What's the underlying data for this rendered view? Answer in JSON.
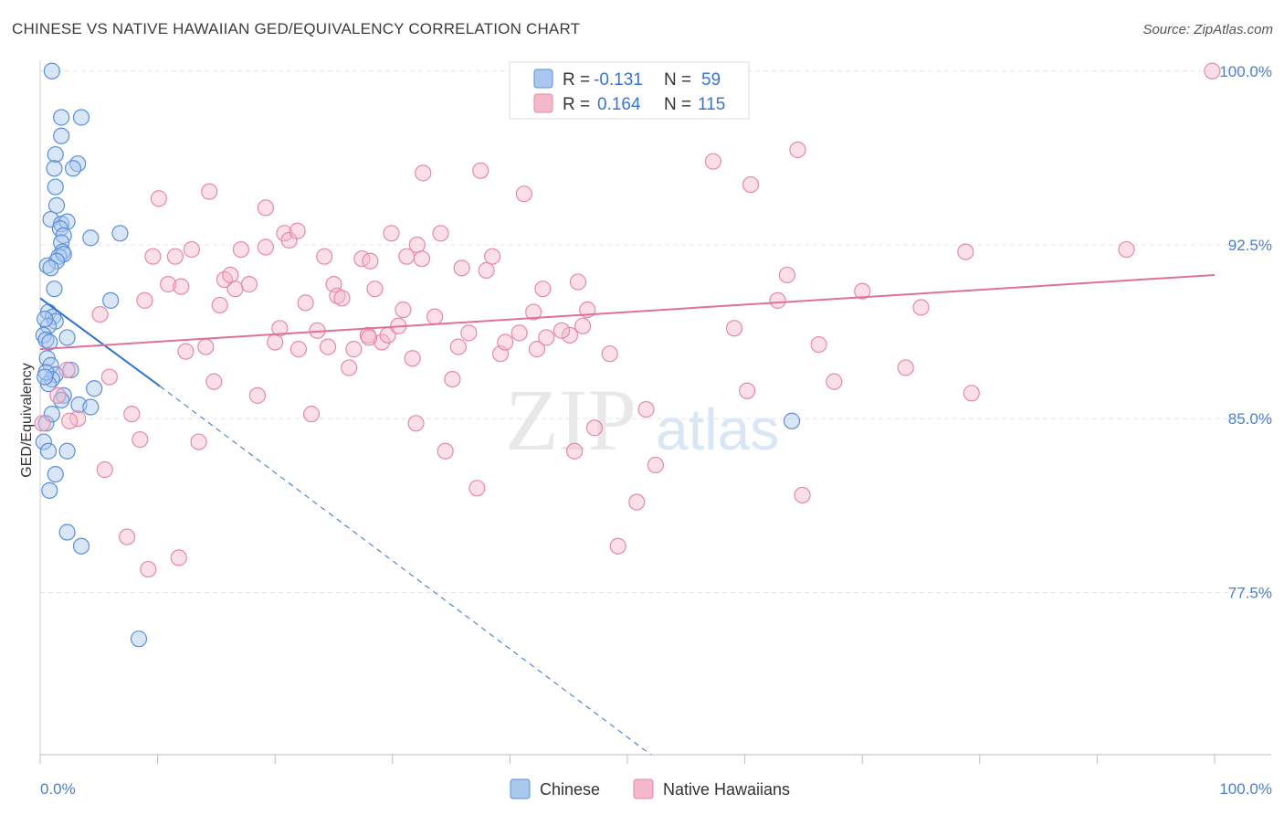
{
  "title": "CHINESE VS NATIVE HAWAIIAN GED/EQUIVALENCY CORRELATION CHART",
  "source": "Source: ZipAtlas.com",
  "watermark": {
    "zip": "ZIP",
    "atlas": "atlas"
  },
  "colors": {
    "chinese_fill": "#aac8ef",
    "chinese_stroke": "#5a8fd8",
    "chinese_line": "#2f6fd1",
    "hawaiian_fill": "#f5b8cb",
    "hawaiian_stroke": "#e589a8",
    "hawaiian_line": "#e0709a",
    "axis_tick": "#4a7fd0",
    "grid": "#e4e4e4"
  },
  "legend": {
    "rows": [
      {
        "r_label": "R =",
        "r_value": "-0.131",
        "n_label": "N =",
        "n_value": "59"
      },
      {
        "r_label": "R =",
        "r_value": "0.164",
        "n_label": "N =",
        "n_value": "115"
      }
    ]
  },
  "bottom_legend": [
    "Chinese",
    "Native Hawaiians"
  ],
  "chart_data": {
    "type": "scatter",
    "title": "CHINESE VS NATIVE HAWAIIAN GED/EQUIVALENCY CORRELATION CHART",
    "xlabel": "",
    "ylabel": "GED/Equivalency",
    "xlim": [
      0,
      100
    ],
    "ylim": [
      70.5,
      100.7
    ],
    "x_tick_labels": [
      "0.0%",
      "100.0%"
    ],
    "y_ticks": [
      77.5,
      85.0,
      92.5,
      100.0
    ],
    "y_tick_labels": [
      "77.5%",
      "85.0%",
      "92.5%",
      "100.0%"
    ],
    "grid": true,
    "legend_position": "top-center",
    "series": [
      {
        "name": "Chinese",
        "r": -0.131,
        "n": 59,
        "trend": {
          "x": [
            0,
            10.2
          ],
          "y": [
            90.2,
            86.4
          ]
        },
        "trend_extension": {
          "x": [
            10.2,
            52.0
          ],
          "y": [
            86.4,
            70.5
          ]
        },
        "points": [
          [
            1.0,
            100.0
          ],
          [
            1.8,
            98.0
          ],
          [
            3.5,
            98.0
          ],
          [
            1.8,
            97.2
          ],
          [
            1.3,
            96.4
          ],
          [
            3.2,
            96.0
          ],
          [
            1.2,
            95.8
          ],
          [
            2.8,
            95.8
          ],
          [
            1.3,
            95.0
          ],
          [
            1.4,
            94.2
          ],
          [
            0.9,
            93.6
          ],
          [
            1.8,
            93.4
          ],
          [
            2.3,
            93.5
          ],
          [
            1.7,
            93.2
          ],
          [
            2.0,
            92.9
          ],
          [
            6.8,
            93.0
          ],
          [
            1.8,
            92.6
          ],
          [
            4.3,
            92.8
          ],
          [
            1.9,
            92.2
          ],
          [
            1.6,
            92.0
          ],
          [
            2.0,
            92.1
          ],
          [
            1.4,
            91.8
          ],
          [
            0.6,
            91.6
          ],
          [
            0.9,
            91.5
          ],
          [
            1.2,
            90.6
          ],
          [
            6.0,
            90.1
          ],
          [
            0.7,
            89.6
          ],
          [
            1.1,
            89.4
          ],
          [
            1.3,
            89.2
          ],
          [
            0.7,
            89.0
          ],
          [
            0.3,
            88.6
          ],
          [
            0.5,
            88.4
          ],
          [
            2.3,
            88.5
          ],
          [
            0.6,
            87.6
          ],
          [
            0.9,
            87.3
          ],
          [
            2.6,
            87.1
          ],
          [
            1.3,
            86.9
          ],
          [
            1.0,
            86.7
          ],
          [
            0.7,
            86.5
          ],
          [
            0.5,
            87.0
          ],
          [
            2.0,
            86.0
          ],
          [
            1.8,
            85.8
          ],
          [
            4.6,
            86.3
          ],
          [
            3.3,
            85.6
          ],
          [
            4.3,
            85.5
          ],
          [
            0.5,
            84.8
          ],
          [
            0.3,
            84.0
          ],
          [
            0.7,
            83.6
          ],
          [
            2.3,
            83.6
          ],
          [
            1.3,
            82.6
          ],
          [
            0.8,
            81.9
          ],
          [
            2.3,
            80.1
          ],
          [
            3.5,
            79.5
          ],
          [
            8.4,
            75.5
          ],
          [
            64.0,
            84.9
          ],
          [
            1.0,
            85.2
          ],
          [
            0.4,
            86.8
          ],
          [
            0.8,
            88.3
          ],
          [
            0.4,
            89.3
          ]
        ]
      },
      {
        "name": "Native Hawaiians",
        "r": 0.164,
        "n": 115,
        "trend": {
          "x": [
            0,
            100
          ],
          "y": [
            88.0,
            91.2
          ]
        },
        "points": [
          [
            0.2,
            84.8
          ],
          [
            1.5,
            86.0
          ],
          [
            2.3,
            87.1
          ],
          [
            3.2,
            85.0
          ],
          [
            2.5,
            84.9
          ],
          [
            5.5,
            82.8
          ],
          [
            5.1,
            89.5
          ],
          [
            5.9,
            86.8
          ],
          [
            7.4,
            79.9
          ],
          [
            7.8,
            85.2
          ],
          [
            8.5,
            84.1
          ],
          [
            8.9,
            90.1
          ],
          [
            9.2,
            78.5
          ],
          [
            10.1,
            94.5
          ],
          [
            9.6,
            92.0
          ],
          [
            10.9,
            90.8
          ],
          [
            11.5,
            92.0
          ],
          [
            11.8,
            79.0
          ],
          [
            12.4,
            87.9
          ],
          [
            12.9,
            92.3
          ],
          [
            13.5,
            84.0
          ],
          [
            14.1,
            88.1
          ],
          [
            14.4,
            94.8
          ],
          [
            14.8,
            86.6
          ],
          [
            15.3,
            89.9
          ],
          [
            15.7,
            91.0
          ],
          [
            16.2,
            91.2
          ],
          [
            16.6,
            90.6
          ],
          [
            17.1,
            92.3
          ],
          [
            17.8,
            90.8
          ],
          [
            18.5,
            86.0
          ],
          [
            19.2,
            92.4
          ],
          [
            19.2,
            94.1
          ],
          [
            20.0,
            88.3
          ],
          [
            20.4,
            88.9
          ],
          [
            20.8,
            93.0
          ],
          [
            21.2,
            92.7
          ],
          [
            21.9,
            93.1
          ],
          [
            22.6,
            90.0
          ],
          [
            23.1,
            85.2
          ],
          [
            23.6,
            88.8
          ],
          [
            24.2,
            92.0
          ],
          [
            24.5,
            88.1
          ],
          [
            25.0,
            90.8
          ],
          [
            25.3,
            90.3
          ],
          [
            25.7,
            90.2
          ],
          [
            26.3,
            87.2
          ],
          [
            26.7,
            88.0
          ],
          [
            27.4,
            91.9
          ],
          [
            27.9,
            88.6
          ],
          [
            28.1,
            91.8
          ],
          [
            28.5,
            90.6
          ],
          [
            29.1,
            88.3
          ],
          [
            29.6,
            88.6
          ],
          [
            29.9,
            93.0
          ],
          [
            30.9,
            89.7
          ],
          [
            31.2,
            92.0
          ],
          [
            31.7,
            87.6
          ],
          [
            32.1,
            92.5
          ],
          [
            32.5,
            91.9
          ],
          [
            32.6,
            95.6
          ],
          [
            33.6,
            89.4
          ],
          [
            34.1,
            93.0
          ],
          [
            34.5,
            83.6
          ],
          [
            35.1,
            86.7
          ],
          [
            35.6,
            88.1
          ],
          [
            35.9,
            91.5
          ],
          [
            36.5,
            88.7
          ],
          [
            37.2,
            82.0
          ],
          [
            37.5,
            95.7
          ],
          [
            38.0,
            91.4
          ],
          [
            38.5,
            92.0
          ],
          [
            39.2,
            87.8
          ],
          [
            39.6,
            88.3
          ],
          [
            40.8,
            88.7
          ],
          [
            41.2,
            94.7
          ],
          [
            42.0,
            89.6
          ],
          [
            42.3,
            88.0
          ],
          [
            42.8,
            90.6
          ],
          [
            43.1,
            88.5
          ],
          [
            45.1,
            88.6
          ],
          [
            45.5,
            83.6
          ],
          [
            45.8,
            90.9
          ],
          [
            46.2,
            89.0
          ],
          [
            46.6,
            89.7
          ],
          [
            47.2,
            84.6
          ],
          [
            48.5,
            87.8
          ],
          [
            49.2,
            79.5
          ],
          [
            50.8,
            81.4
          ],
          [
            51.6,
            85.4
          ],
          [
            52.4,
            83.0
          ],
          [
            57.3,
            96.1
          ],
          [
            59.1,
            88.9
          ],
          [
            60.2,
            86.2
          ],
          [
            60.5,
            95.1
          ],
          [
            62.8,
            90.1
          ],
          [
            63.6,
            91.2
          ],
          [
            64.5,
            96.6
          ],
          [
            64.9,
            81.7
          ],
          [
            66.3,
            88.2
          ],
          [
            67.6,
            86.6
          ],
          [
            70.0,
            90.5
          ],
          [
            73.7,
            87.2
          ],
          [
            75.0,
            89.8
          ],
          [
            78.8,
            92.2
          ],
          [
            79.3,
            86.1
          ],
          [
            92.5,
            92.3
          ],
          [
            99.8,
            100.0
          ],
          [
            59.0,
            100.0
          ],
          [
            22.0,
            88.0
          ],
          [
            32.0,
            84.8
          ],
          [
            28.0,
            88.5
          ],
          [
            30.5,
            89.0
          ],
          [
            44.4,
            88.8
          ],
          [
            12.0,
            90.7
          ]
        ]
      }
    ]
  }
}
